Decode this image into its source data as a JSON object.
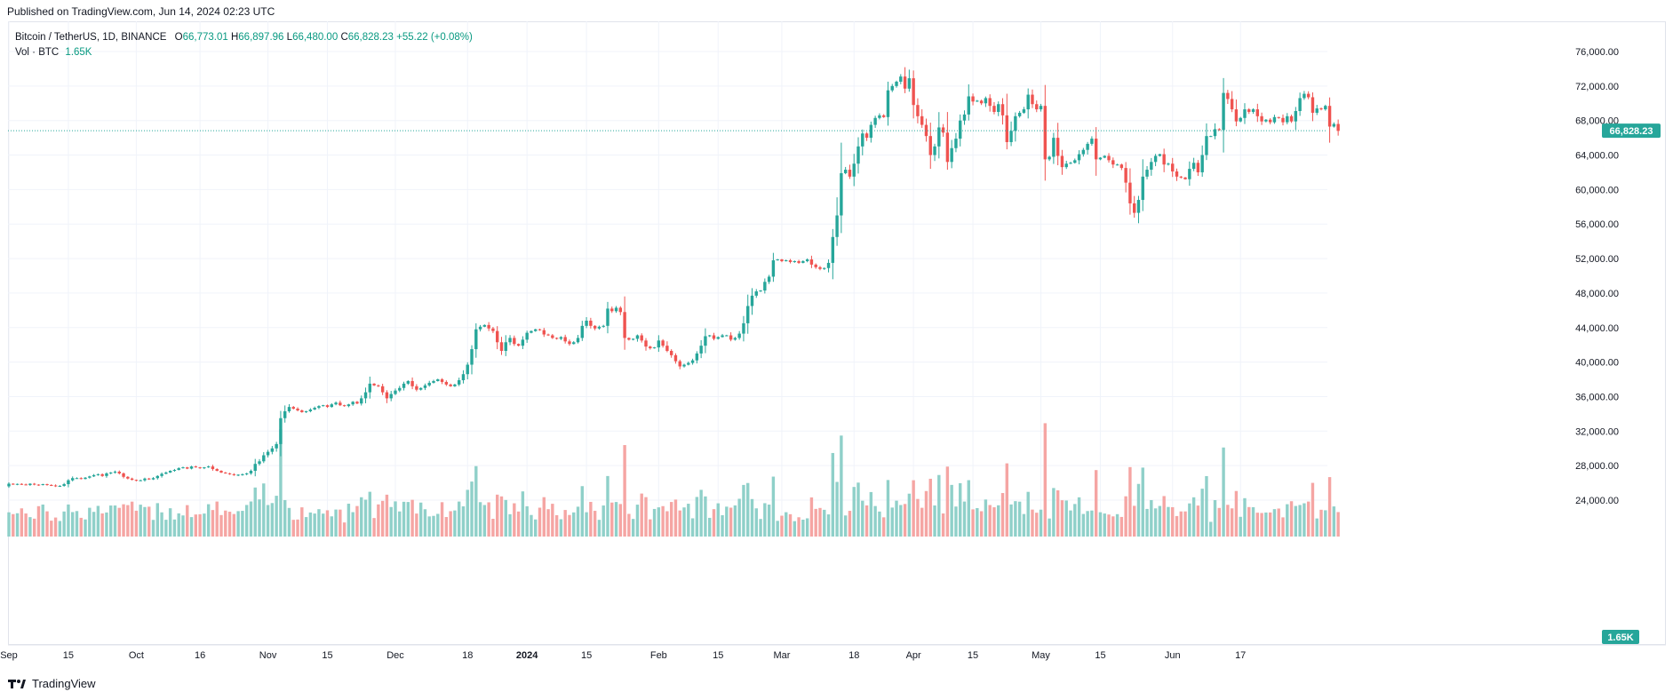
{
  "header": {
    "published": "Published on TradingView.com, Jun 14, 2024 02:23 UTC"
  },
  "legend": {
    "symbol": "Bitcoin / TetherUS, 1D, BINANCE",
    "o_label": "O",
    "o": "66,773.01",
    "h_label": "H",
    "h": "66,897.96",
    "l_label": "L",
    "l": "66,480.00",
    "c_label": "C",
    "c": "66,828.23",
    "change": "+55.22 (+0.08%)",
    "vol_label": "Vol · BTC",
    "vol_value": "1.65K"
  },
  "price_label": "66,828.23",
  "volume_label": "1.65K",
  "footer": {
    "brand": "TradingView",
    "logo_icon": "tradingview-logo-icon"
  },
  "colors": {
    "up": "#26a69a",
    "down": "#ef5350",
    "up_vol": "#8fd0c9",
    "down_vol": "#f5a5a3",
    "accent": "#089981"
  },
  "chart_data": {
    "type": "candlestick",
    "title": "Bitcoin / TetherUS, 1D, BINANCE",
    "y_ticks": [
      "76,000.00",
      "72,000.00",
      "68,000.00",
      "64,000.00",
      "60,000.00",
      "56,000.00",
      "52,000.00",
      "48,000.00",
      "44,000.00",
      "40,000.00",
      "36,000.00",
      "32,000.00",
      "28,000.00",
      "24,000.00"
    ],
    "ylim": [
      23000,
      77000
    ],
    "x_ticks": [
      {
        "date": "2023-09-01",
        "label": "Sep"
      },
      {
        "date": "2023-09-15",
        "label": "15"
      },
      {
        "date": "2023-10-01",
        "label": "Oct"
      },
      {
        "date": "2023-10-16",
        "label": "16"
      },
      {
        "date": "2023-11-01",
        "label": "Nov"
      },
      {
        "date": "2023-11-15",
        "label": "15"
      },
      {
        "date": "2023-12-01",
        "label": "Dec"
      },
      {
        "date": "2023-12-18",
        "label": "18"
      },
      {
        "date": "2024-01-01",
        "label": "2024"
      },
      {
        "date": "2024-01-15",
        "label": "15"
      },
      {
        "date": "2024-02-01",
        "label": "Feb"
      },
      {
        "date": "2024-02-15",
        "label": "15"
      },
      {
        "date": "2024-03-01",
        "label": "Mar"
      },
      {
        "date": "2024-03-18",
        "label": "18"
      },
      {
        "date": "2024-04-01",
        "label": "Apr"
      },
      {
        "date": "2024-04-15",
        "label": "15"
      },
      {
        "date": "2024-05-01",
        "label": "May"
      },
      {
        "date": "2024-05-15",
        "label": "15"
      },
      {
        "date": "2024-06-01",
        "label": "Jun"
      },
      {
        "date": "2024-06-17",
        "label": "17"
      }
    ],
    "last_close": 66828.23,
    "close_series": {
      "start_date": "2023-09-01",
      "values": [
        25900,
        25850,
        25880,
        25820,
        25750,
        25900,
        25800,
        25780,
        25850,
        25750,
        25700,
        25600,
        25650,
        25850,
        26300,
        26550,
        26550,
        26450,
        26600,
        26750,
        26900,
        27000,
        26800,
        27100,
        27200,
        27300,
        27100,
        26700,
        26500,
        26350,
        26250,
        26300,
        26500,
        26400,
        26550,
        26800,
        27050,
        27200,
        27400,
        27500,
        27700,
        27800,
        27650,
        27900,
        27800,
        27700,
        27800,
        27900,
        27600,
        27400,
        27200,
        27100,
        27000,
        26900,
        26950,
        27000,
        27100,
        27400,
        28200,
        28500,
        29200,
        29600,
        30000,
        30500,
        33500,
        34300,
        34800,
        34600,
        34400,
        34200,
        34300,
        34500,
        34700,
        34900,
        35000,
        34800,
        35100,
        35300,
        35000,
        34900,
        35100,
        35400,
        35200,
        35800,
        36500,
        37500,
        37300,
        37200,
        36500,
        35800,
        36300,
        36700,
        37000,
        37500,
        37800,
        37200,
        36800,
        37000,
        37300,
        37600,
        37800,
        38000,
        37700,
        37400,
        37200,
        37400,
        37900,
        38600,
        39700,
        41500,
        43800,
        44100,
        44300,
        43900,
        43600,
        42300,
        41300,
        42300,
        42800,
        42100,
        41900,
        42600,
        43400,
        43600,
        43800,
        43700,
        43200,
        43100,
        42800,
        42700,
        42900,
        42400,
        42100,
        42300,
        42800,
        44200,
        44800,
        44200,
        43900,
        44100,
        44200,
        46200,
        45900,
        46300,
        45800,
        42800,
        42600,
        42700,
        43100,
        42500,
        41800,
        41600,
        41700,
        42500,
        41900,
        41300,
        40800,
        40100,
        39500,
        39700,
        39900,
        40200,
        41000,
        41900,
        43000,
        43100,
        42700,
        42900,
        43100,
        43100,
        42600,
        42800,
        43300,
        44500,
        46500,
        47700,
        48200,
        48300,
        49300,
        49900,
        51800,
        51900,
        51700,
        51800,
        51600,
        51700,
        51500,
        51700,
        51900,
        51300,
        51000,
        50800,
        50900,
        51500,
        54500,
        57000,
        61900,
        62300,
        61500,
        63000,
        65000,
        66500,
        66000,
        67500,
        68300,
        68600,
        68400,
        71500,
        72000,
        72500,
        73100,
        71700,
        72900,
        69800,
        68500,
        67500,
        66200,
        64000,
        65000,
        67200,
        66600,
        63200,
        64800,
        65900,
        68000,
        68700,
        70800,
        70200,
        70300,
        70000,
        70600,
        69700,
        69000,
        69900,
        68600,
        65500,
        66800,
        68500,
        68900,
        69300,
        71000,
        69900,
        69300,
        69700,
        63500,
        63800,
        66000,
        63900,
        62600,
        63000,
        63100,
        63400,
        64100,
        64600,
        65300,
        65900,
        63500,
        63700,
        63900,
        63400,
        62900,
        62900,
        62500,
        60800,
        58400,
        57300,
        58800,
        61500,
        62300,
        63200,
        63900,
        64100,
        62900,
        63000,
        62100,
        61500,
        61400,
        61200,
        62400,
        63100,
        62000,
        64000,
        66200,
        66200,
        67000,
        66900,
        71200,
        70500,
        69300,
        67900,
        68300,
        69300,
        69000,
        69300,
        68500,
        67900,
        68100,
        67800,
        68400,
        68300,
        67800,
        68500,
        67900,
        69100,
        70600,
        71100,
        70700,
        68900,
        69400,
        69300,
        69700,
        67300,
        67600,
        66800
      ]
    },
    "highlights": {
      "high_max": 73777,
      "low_min": 56552,
      "volume_unit": "BTC",
      "last_volume": 1650
    }
  }
}
